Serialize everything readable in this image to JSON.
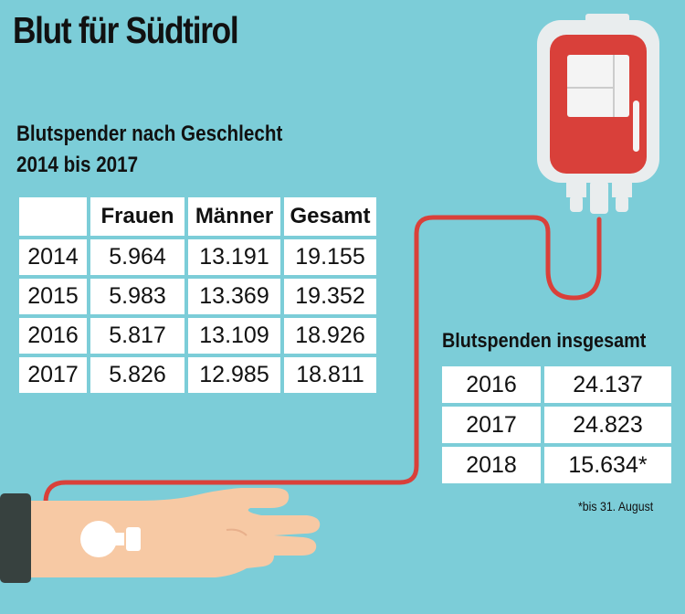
{
  "title": "Blut für Südtirol",
  "subtitle": {
    "line1": "Blutspender nach Geschlecht",
    "line2": "2014 bis 2017"
  },
  "gender_table": {
    "header": [
      "",
      "Frauen",
      "Männer",
      "Gesamt"
    ],
    "rows": [
      [
        "2014",
        "5.964",
        "13.191",
        "19.155"
      ],
      [
        "2015",
        "5.983",
        "13.369",
        "19.352"
      ],
      [
        "2016",
        "5.817",
        "13.109",
        "18.926"
      ],
      [
        "2017",
        "5.826",
        "12.985",
        "18.811"
      ]
    ]
  },
  "total_section": {
    "heading": "Blutspenden insgesamt",
    "rows": [
      [
        "2016",
        "24.137"
      ],
      [
        "2017",
        "24.823"
      ],
      [
        "2018",
        "15.634*"
      ]
    ],
    "footnote": "*bis 31. August"
  },
  "colors": {
    "background": "#7ccdd8",
    "blood": "#d9403a",
    "bag": "#e9edee",
    "skin": "#f7c9a4",
    "sleeve": "#37413f"
  }
}
